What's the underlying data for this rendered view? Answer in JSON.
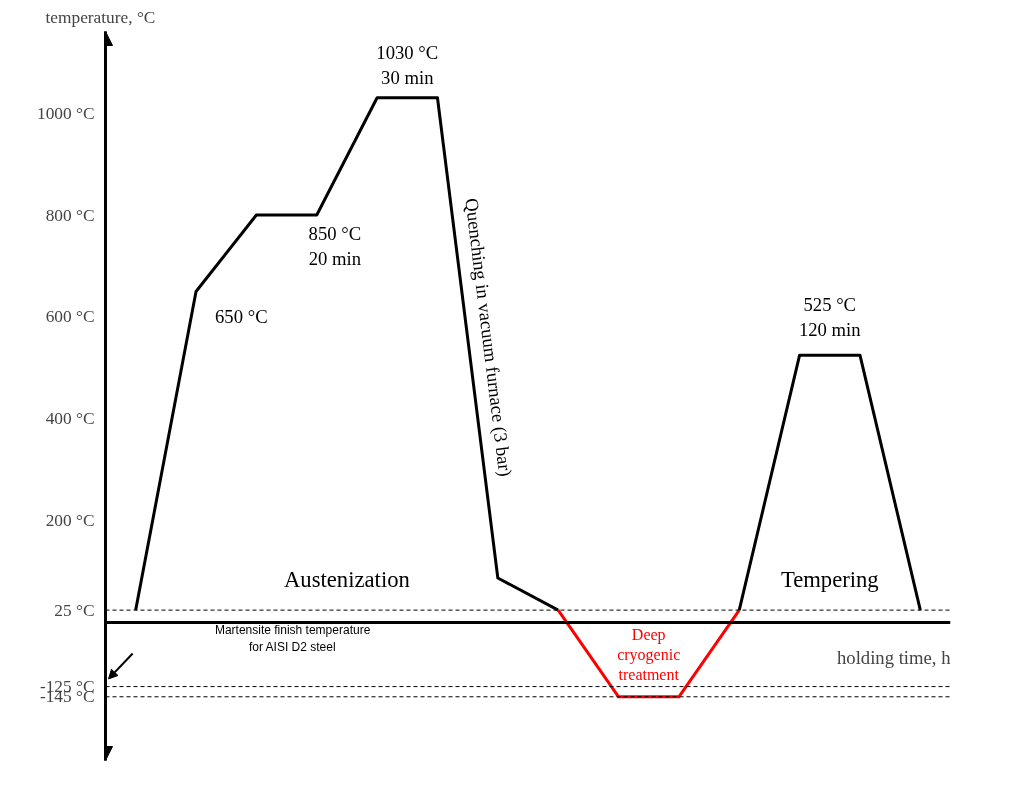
{
  "chart_data": {
    "type": "line",
    "ylabel": "temperature, °C",
    "xlabel": "holding time, h",
    "categories": [
      null,
      null,
      null,
      null,
      null,
      null,
      null,
      null,
      null,
      null,
      null,
      null,
      null,
      null
    ],
    "ylim": [
      -270,
      1160
    ],
    "yticks": [
      {
        "value": 1000,
        "label": "1000 °C"
      },
      {
        "value": 800,
        "label": "800 °C"
      },
      {
        "value": 600,
        "label": "600 °C"
      },
      {
        "value": 400,
        "label": "400 °C"
      },
      {
        "value": 200,
        "label": "200 °C"
      },
      {
        "value": 25,
        "label": "25 °C"
      },
      {
        "value": -125,
        "label": "-125 °C"
      },
      {
        "value": -145,
        "label": "-145 °C"
      }
    ],
    "tick_labels": "y",
    "grid": false,
    "marker": "none",
    "line_style": "solid",
    "series": [
      {
        "color": "#000000",
        "values": [
          25,
          650,
          800,
          800,
          1030,
          1030,
          88,
          25,
          null,
          null,
          null,
          null,
          null,
          null
        ]
      },
      {
        "color": "#ff0000",
        "values": [
          null,
          null,
          null,
          null,
          null,
          null,
          null,
          25,
          -145,
          -145,
          25,
          null,
          null,
          null
        ]
      },
      {
        "color": "#000000",
        "values": [
          null,
          null,
          null,
          null,
          null,
          null,
          null,
          null,
          null,
          null,
          25,
          525,
          525,
          25
        ]
      }
    ],
    "ref_lines": [
      {
        "axis": "y",
        "value": 25,
        "line_style": "dashed"
      },
      {
        "axis": "y",
        "value": -125,
        "line_style": "dashed"
      },
      {
        "axis": "y",
        "value": -145,
        "line_style": "dashed"
      }
    ],
    "annotations": [
      "1030 °C\n30 min",
      "850 °C\n20 min",
      "650 °C",
      "525 °C\n120 min",
      "Quenching in vacuum furnace (3 bar)",
      "Austenization",
      "Tempering",
      "Deep\ncryogenic\ntreatment",
      "Martensite finish temperature\nfor AISI D2 steel"
    ]
  }
}
